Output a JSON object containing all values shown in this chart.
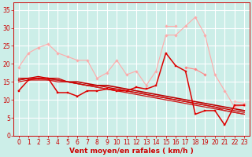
{
  "background_color": "#cceee8",
  "grid_color": "#ffffff",
  "xlabel": "Vent moyen/en rafales ( km/h )",
  "xlabel_color": "#cc0000",
  "xlabel_fontsize": 6.5,
  "tick_color": "#cc0000",
  "tick_fontsize": 5.5,
  "ylim": [
    0,
    37
  ],
  "xlim": [
    -0.5,
    23.5
  ],
  "yticks": [
    0,
    5,
    10,
    15,
    20,
    25,
    30,
    35
  ],
  "xticks": [
    0,
    1,
    2,
    3,
    4,
    5,
    6,
    7,
    8,
    9,
    10,
    11,
    12,
    13,
    14,
    15,
    16,
    17,
    18,
    19,
    20,
    21,
    22,
    23
  ],
  "series": [
    {
      "color": "#ffaaaa",
      "linewidth": 0.8,
      "marker": "D",
      "markersize": 1.8,
      "zorder": 3,
      "data": [
        19,
        23,
        24.5,
        25.5,
        23,
        22,
        21,
        21,
        16,
        17.5,
        21,
        17,
        18,
        14,
        18,
        28,
        28,
        30.5,
        33,
        28,
        17,
        12.5,
        8,
        8.5
      ]
    },
    {
      "color": "#ffaaaa",
      "linewidth": 0.8,
      "marker": "D",
      "markersize": 1.8,
      "zorder": 3,
      "data": [
        null,
        null,
        null,
        null,
        null,
        null,
        null,
        null,
        null,
        null,
        null,
        null,
        null,
        null,
        null,
        30.5,
        30.5,
        null,
        null,
        null,
        null,
        null,
        null,
        null
      ]
    },
    {
      "color": "#ffbbbb",
      "linewidth": 0.8,
      "marker": "D",
      "markersize": 1.8,
      "zorder": 3,
      "data": [
        null,
        null,
        null,
        null,
        null,
        null,
        null,
        null,
        null,
        null,
        null,
        null,
        null,
        null,
        null,
        null,
        null,
        null,
        null,
        null,
        null,
        null,
        9.5,
        9
      ]
    },
    {
      "color": "#ff8888",
      "linewidth": 0.8,
      "marker": "D",
      "markersize": 1.8,
      "zorder": 3,
      "data": [
        null,
        null,
        null,
        null,
        null,
        null,
        null,
        null,
        null,
        null,
        null,
        null,
        null,
        null,
        null,
        null,
        null,
        19,
        18.5,
        17,
        null,
        null,
        null,
        null
      ]
    },
    {
      "color": "#dd0000",
      "linewidth": 1.1,
      "marker": "s",
      "markersize": 2.0,
      "zorder": 4,
      "data": [
        12.5,
        15.5,
        16,
        16,
        12,
        12,
        11,
        12.5,
        12.5,
        13,
        12.5,
        12.5,
        13.5,
        13,
        14,
        23,
        19.5,
        18,
        6,
        7,
        7,
        3,
        8.5,
        8.5
      ]
    },
    {
      "color": "#bb0000",
      "linewidth": 1.2,
      "marker": null,
      "markersize": 0,
      "zorder": 2,
      "data": [
        15.5,
        16,
        16,
        16,
        15.5,
        15,
        15,
        14.5,
        14,
        14,
        13.5,
        13,
        12.5,
        12,
        11.5,
        11,
        10.5,
        10,
        9.5,
        9,
        8.5,
        8,
        7.5,
        7
      ]
    },
    {
      "color": "#cc1111",
      "linewidth": 0.9,
      "marker": null,
      "markersize": 0,
      "zorder": 2,
      "data": [
        15,
        15.5,
        15.5,
        15.5,
        15,
        15,
        14.5,
        14,
        13.5,
        13,
        12.5,
        12,
        11.5,
        11,
        10.5,
        10,
        9.5,
        9,
        8.5,
        8,
        7.5,
        7,
        6.5,
        6
      ]
    },
    {
      "color": "#cc2222",
      "linewidth": 0.9,
      "marker": null,
      "markersize": 0,
      "zorder": 2,
      "data": [
        15.5,
        16,
        16,
        15.5,
        15.5,
        15,
        14.5,
        14,
        13.5,
        13,
        13,
        12.5,
        12,
        11.5,
        11,
        10.5,
        10,
        9.5,
        9,
        8.5,
        8,
        7,
        6.5,
        6
      ]
    },
    {
      "color": "#cc0000",
      "linewidth": 0.9,
      "marker": null,
      "markersize": 0,
      "zorder": 2,
      "data": [
        16,
        16,
        16.5,
        16,
        16,
        15,
        14.5,
        14,
        14,
        13.5,
        13,
        12.5,
        12,
        11.5,
        11,
        10.5,
        10,
        9.5,
        9,
        8.5,
        8,
        7.5,
        7,
        6.5
      ]
    }
  ]
}
